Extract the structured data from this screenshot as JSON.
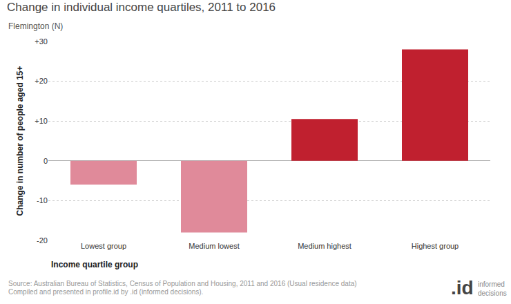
{
  "chart_data": {
    "type": "bar",
    "title": "Change in individual income quartiles, 2011 to 2016",
    "subtitle": "Flemington (N)",
    "x_label": "Income quartile group",
    "y_label": "Change in number of people aged 15+",
    "categories": [
      "Lowest group",
      "Medium lowest",
      "Medium highest",
      "Highest group"
    ],
    "values": [
      -6,
      -18,
      10.5,
      28
    ],
    "colors": [
      "#e08a9a",
      "#e08a9a",
      "#c0202f",
      "#c0202f"
    ],
    "ylim": [
      -20,
      30
    ],
    "yticks": [
      {
        "value": 30,
        "label": "+30"
      },
      {
        "value": 20,
        "label": "+20"
      },
      {
        "value": 10,
        "label": "+10"
      },
      0,
      -10,
      -20
    ],
    "grid": true,
    "source": [
      "Source: Australian Bureau of Statistics, Census of Population and Housing, 2011 and 2016 (Usual residence data)",
      "Compiled and presented in profile.id by .id (informed decisions)."
    ],
    "logo": [
      ".id",
      "informed",
      "decisions"
    ]
  }
}
